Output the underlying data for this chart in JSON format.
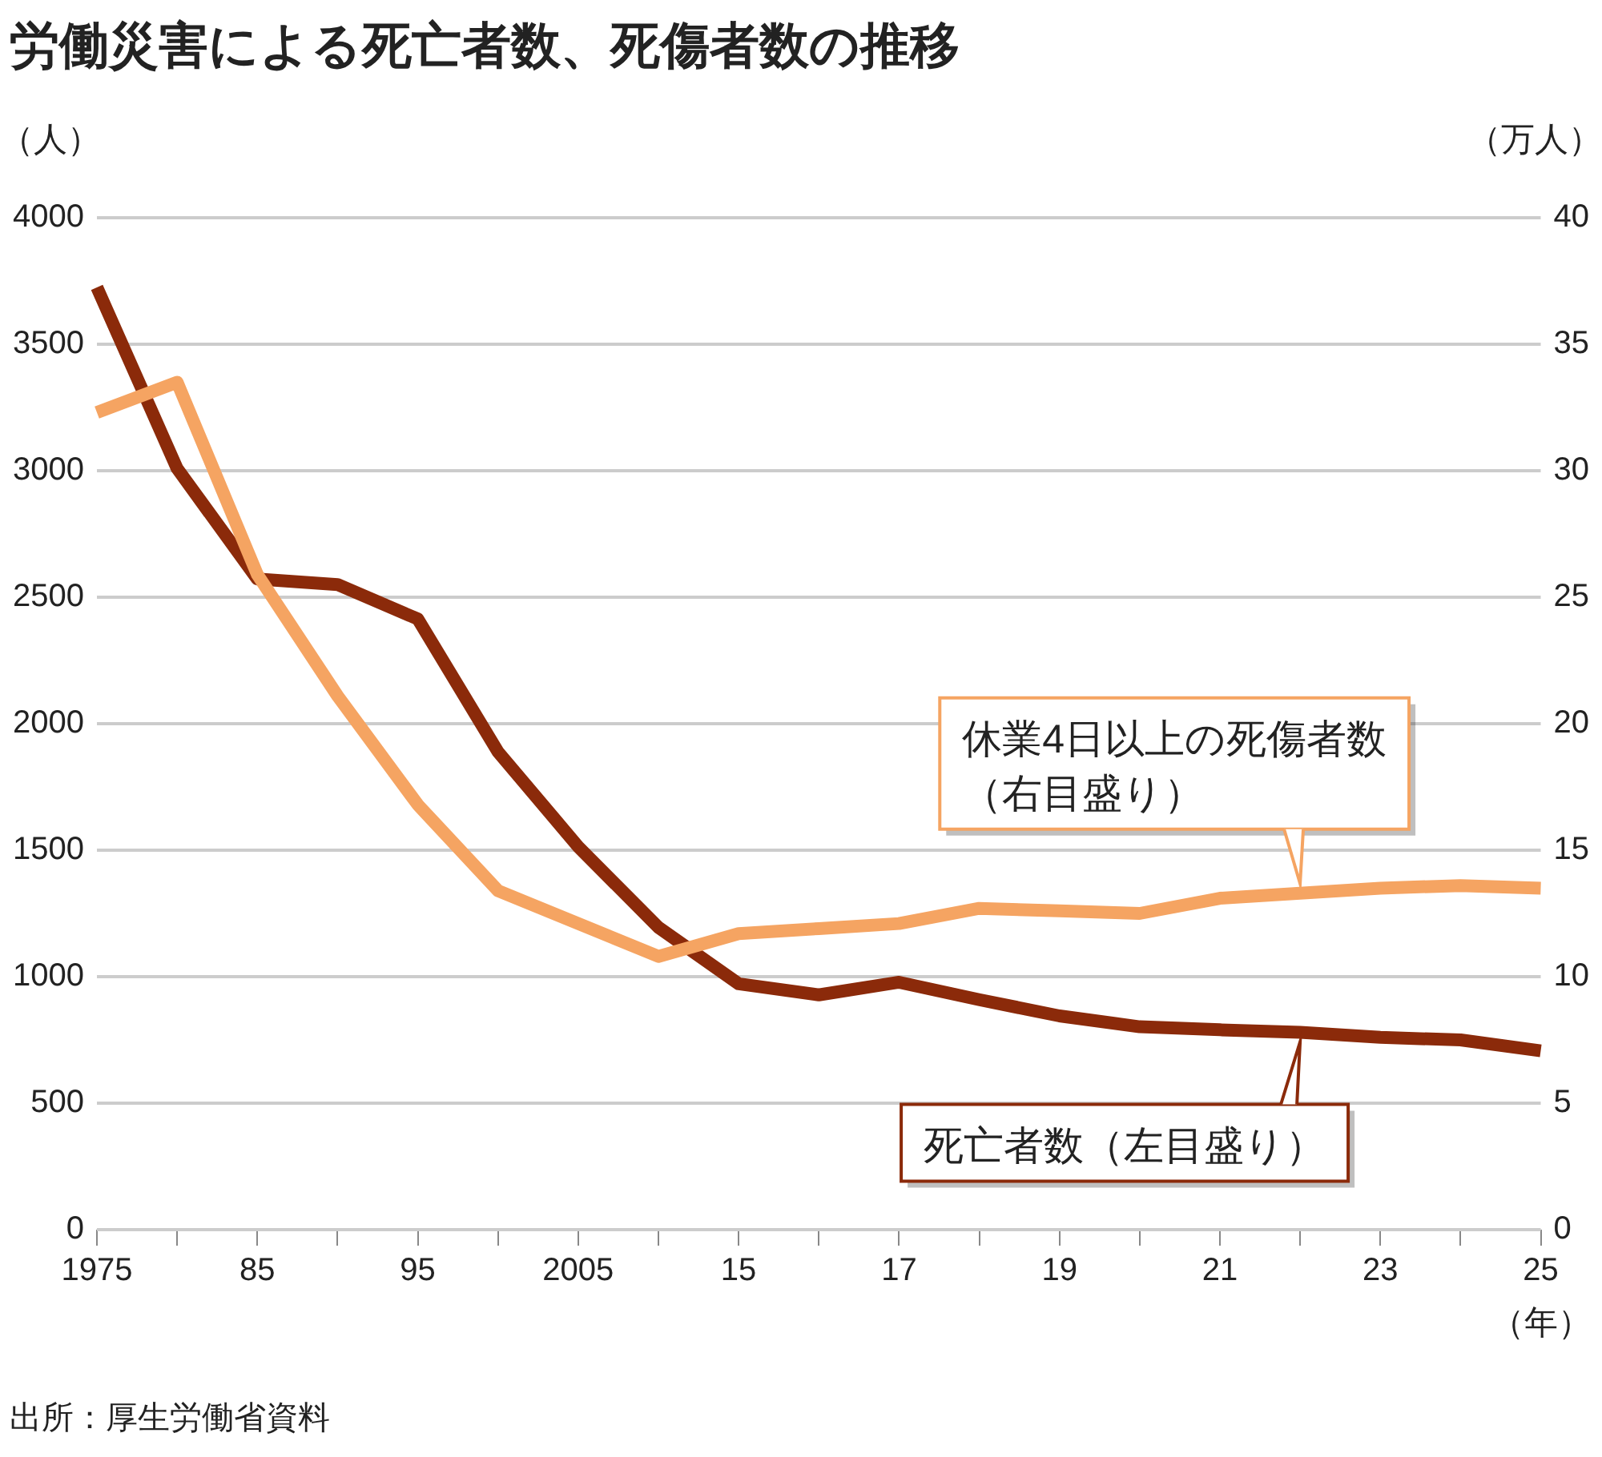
{
  "chart_data": {
    "type": "line",
    "title": "労働災害による死亡者数、死傷者数の推移",
    "ylabel": "（人）",
    "y2label": "（万人）",
    "xlabel": "（年）",
    "categories": [
      "1975",
      null,
      "85",
      null,
      "95",
      null,
      "2005",
      null,
      "15",
      null,
      "17",
      null,
      "19",
      null,
      "21",
      null,
      "23",
      null,
      "25"
    ],
    "series": [
      {
        "name": "死亡者数（左目盛り）",
        "color": "#8b2a0a",
        "values": [
          3725,
          3009,
          2572,
          2550,
          2414,
          1889,
          1514,
          1195,
          972,
          928,
          978,
          909,
          845,
          802,
          790,
          780,
          760,
          750,
          707
        ]
      },
      {
        "name": "休業4日以上の死傷者数（右目盛り）",
        "color": "#f5a462",
        "axis": "y2",
        "values": [
          32.3,
          33.5,
          25.9,
          21.1,
          16.8,
          13.4,
          12.1,
          10.8,
          11.7,
          11.9,
          12.1,
          12.7,
          12.6,
          12.5,
          13.1,
          13.3,
          13.5,
          13.6,
          13.5
        ]
      }
    ],
    "ylim": [
      0,
      4000
    ],
    "yticks": [
      0,
      500,
      1000,
      1500,
      2000,
      2500,
      3000,
      3500,
      4000
    ],
    "y2lim": [
      0,
      40
    ],
    "y2ticks": [
      0,
      5,
      10,
      15,
      20,
      25,
      30,
      35,
      40
    ],
    "grid": "y",
    "legend": "right",
    "marker": "none",
    "line_style": "solid",
    "annotations": [
      "出所：厚生労働省資料"
    ]
  }
}
